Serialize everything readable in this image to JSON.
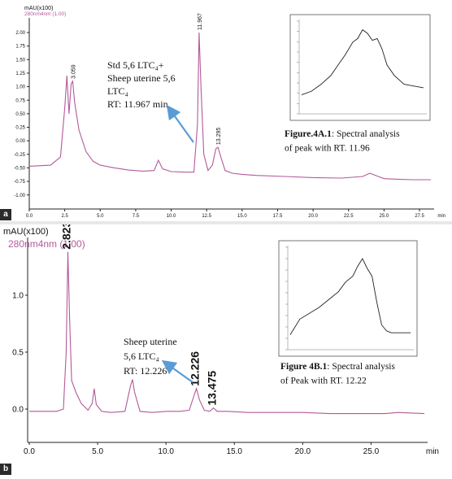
{
  "colors": {
    "trace": "#b35a9a",
    "axis": "#222222",
    "arrow": "#5b9bd5",
    "text": "#111111",
    "badge": "#2b2b2b"
  },
  "chart_data": [
    {
      "type": "line",
      "panel_label": "a",
      "ylabel": "mAU(x100)",
      "channel": "280nm4nm (1.00)",
      "xunit": "min",
      "xlim": [
        0,
        28.3
      ],
      "ylim": [
        -1.05,
        2.15
      ],
      "xticks": [
        "0.0",
        "2.5",
        "5.0",
        "7.5",
        "10.0",
        "12.5",
        "15.0",
        "17.5",
        "20.0",
        "22.5",
        "25.0",
        "27.5"
      ],
      "yticks": [
        "2.00",
        "1.75",
        "1.50",
        "1.25",
        "1.00",
        "0.75",
        "0.50",
        "0.25",
        "0.00",
        "-0.25",
        "-0.50",
        "-0.75",
        "-1.00"
      ],
      "series": [
        {
          "x": [
            0,
            1.5,
            2.2,
            2.5,
            2.65,
            2.8,
            2.95,
            3.06,
            3.2,
            3.5,
            4,
            4.5,
            5,
            6,
            7,
            8,
            8.8,
            9.1,
            9.4,
            10,
            11,
            11.6,
            11.85,
            11.967,
            12.1,
            12.3,
            12.6,
            12.9,
            13.15,
            13.295,
            13.5,
            13.8,
            14.3,
            15,
            16,
            18,
            20,
            22,
            23.5,
            24,
            24.5,
            25,
            26,
            27,
            28.3
          ],
          "y": [
            -0.47,
            -0.45,
            -0.3,
            0.6,
            1.2,
            0.5,
            1.05,
            1.1,
            0.7,
            0.2,
            -0.2,
            -0.38,
            -0.45,
            -0.5,
            -0.54,
            -0.56,
            -0.55,
            -0.36,
            -0.52,
            -0.57,
            -0.58,
            -0.58,
            0.3,
            2.0,
            1.0,
            -0.25,
            -0.55,
            -0.45,
            -0.15,
            -0.12,
            -0.3,
            -0.55,
            -0.6,
            -0.62,
            -0.64,
            -0.66,
            -0.68,
            -0.69,
            -0.66,
            -0.6,
            -0.65,
            -0.7,
            -0.71,
            -0.72,
            -0.72
          ]
        }
      ],
      "peak_labels": [
        {
          "x": 3.06,
          "y": 1.1,
          "text": "3.059"
        },
        {
          "x": 11.967,
          "y": 2.0,
          "text": "11.967"
        },
        {
          "x": 13.295,
          "y": -0.12,
          "text": "13.295"
        }
      ],
      "annotation": {
        "lines": [
          "Std 5,6 LTC₄+",
          "Sheep uterine 5,6",
          "LTC₄",
          "RT: 11.967  min"
        ]
      },
      "inset": {
        "caption_bold": "Figure.4A.1",
        "caption_rest": ": Spectral analysis of peak with RT. 11.96",
        "spectrum": {
          "x": [
            0,
            0.08,
            0.16,
            0.24,
            0.3,
            0.36,
            0.42,
            0.46,
            0.5,
            0.54,
            0.58,
            0.62,
            0.66,
            0.7,
            0.76,
            0.84,
            0.92,
            1
          ],
          "y": [
            0.18,
            0.22,
            0.3,
            0.4,
            0.52,
            0.64,
            0.78,
            0.82,
            0.92,
            0.88,
            0.8,
            0.82,
            0.7,
            0.52,
            0.4,
            0.3,
            0.28,
            0.26
          ]
        }
      }
    },
    {
      "type": "line",
      "panel_label": "b",
      "ylabel": "mAU(x100)",
      "channel": "280nm4nm (1.00)",
      "xunit": "min",
      "xlim": [
        0,
        28.9
      ],
      "ylim": [
        -0.2,
        1.45
      ],
      "xticks": [
        "0.0",
        "5.0",
        "10.0",
        "15.0",
        "20.0",
        "25.0"
      ],
      "yticks": [
        "1.0",
        "0.5",
        "0.0"
      ],
      "series": [
        {
          "x": [
            0,
            2.0,
            2.5,
            2.7,
            2.823,
            2.95,
            3.1,
            3.4,
            3.8,
            4.3,
            4.6,
            4.75,
            4.9,
            5.3,
            6,
            7,
            7.4,
            7.55,
            7.7,
            8.1,
            9,
            10,
            11,
            11.7,
            12.0,
            12.226,
            12.45,
            12.8,
            13.2,
            13.475,
            13.75,
            14.5,
            16,
            18,
            20,
            22,
            24,
            26,
            27,
            28.9
          ],
          "y": [
            -0.02,
            -0.02,
            0.0,
            0.5,
            1.38,
            0.8,
            0.25,
            0.15,
            0.05,
            -0.01,
            0.05,
            0.18,
            0.04,
            -0.02,
            -0.03,
            -0.02,
            0.2,
            0.26,
            0.15,
            -0.02,
            -0.03,
            -0.02,
            -0.02,
            -0.01,
            0.1,
            0.18,
            0.08,
            -0.01,
            -0.02,
            0.01,
            -0.02,
            -0.02,
            -0.03,
            -0.03,
            -0.03,
            -0.04,
            -0.04,
            -0.04,
            -0.03,
            -0.04
          ]
        }
      ],
      "peak_labels": [
        {
          "x": 2.823,
          "y": 1.38,
          "text": "2.823"
        },
        {
          "x": 12.226,
          "y": 0.18,
          "text": "12.226"
        },
        {
          "x": 13.475,
          "y": 0.01,
          "text": "13.475"
        }
      ],
      "annotation": {
        "lines": [
          "Sheep uterine",
          "5,6 LTC₄",
          "RT: 12.226"
        ]
      },
      "inset": {
        "caption_bold": "Figure 4B.1",
        "caption_rest": ": Spectral analysis of Peak with RT. 12.22",
        "spectrum": {
          "x": [
            0,
            0.08,
            0.16,
            0.24,
            0.32,
            0.4,
            0.46,
            0.52,
            0.56,
            0.6,
            0.64,
            0.68,
            0.72,
            0.76,
            0.8,
            0.84,
            0.9,
            1
          ],
          "y": [
            0.12,
            0.28,
            0.34,
            0.4,
            0.48,
            0.56,
            0.66,
            0.72,
            0.82,
            0.9,
            0.8,
            0.72,
            0.45,
            0.22,
            0.16,
            0.14,
            0.14,
            0.14
          ]
        }
      }
    }
  ]
}
